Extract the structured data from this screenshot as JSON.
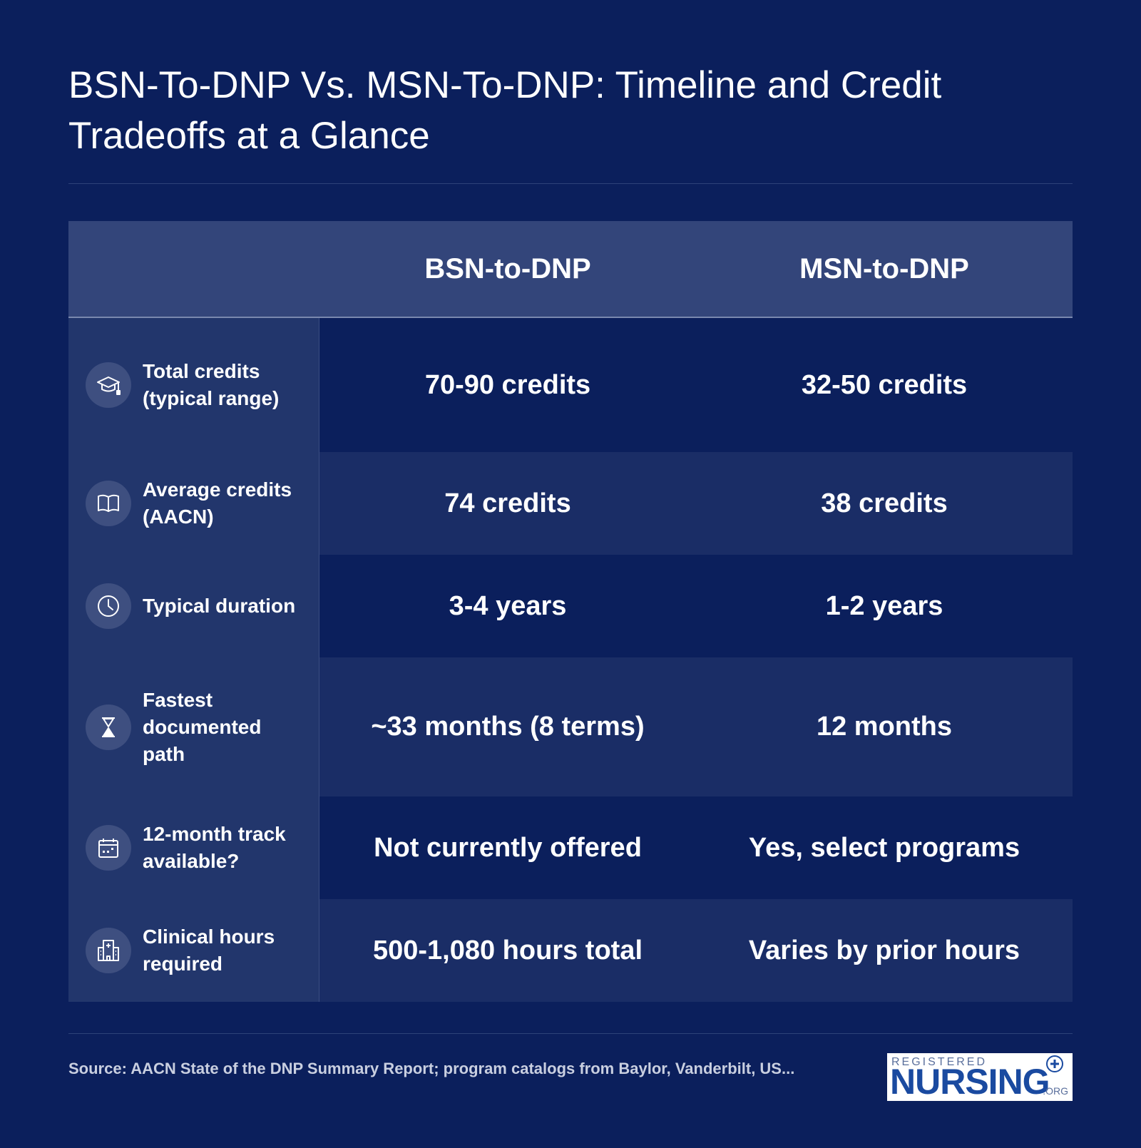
{
  "title": "BSN-To-DNP Vs. MSN-To-DNP: Timeline and Credit Tradeoffs at a Glance",
  "table": {
    "columns": [
      "BSN-to-DNP",
      "MSN-to-DNP"
    ],
    "rows": [
      {
        "label": "Total credits (typical range)",
        "icon": "graduation-cap-icon",
        "bsn": "70-90 credits",
        "msn": "32-50 credits"
      },
      {
        "label": "Average credits (AACN)",
        "icon": "open-book-icon",
        "bsn": "74 credits",
        "msn": "38 credits"
      },
      {
        "label": "Typical duration",
        "icon": "clock-icon",
        "bsn": "3-4 years",
        "msn": "1-2 years"
      },
      {
        "label": "Fastest documented path",
        "icon": "hourglass-icon",
        "bsn": "~33 months (8 terms)",
        "msn": "12 months"
      },
      {
        "label": "12-month track available?",
        "icon": "calendar-icon",
        "bsn": "Not currently offered",
        "msn": "Yes, select programs"
      },
      {
        "label": "Clinical hours required",
        "icon": "hospital-icon",
        "bsn": "500-1,080 hours total",
        "msn": "Varies by prior hours"
      }
    ]
  },
  "source": "Source: AACN State of the DNP Summary Report; program catalogs from Baylor, Vanderbilt, US...",
  "logo": {
    "top": "REGISTERED",
    "main": "NURSING",
    "suffix": ".ORG"
  },
  "colors": {
    "background": "#0b1f5c",
    "header": "#33457a",
    "label_column": "#22366c",
    "row_alt": "#1a2d66",
    "logo_blue": "#1a4aa0"
  }
}
